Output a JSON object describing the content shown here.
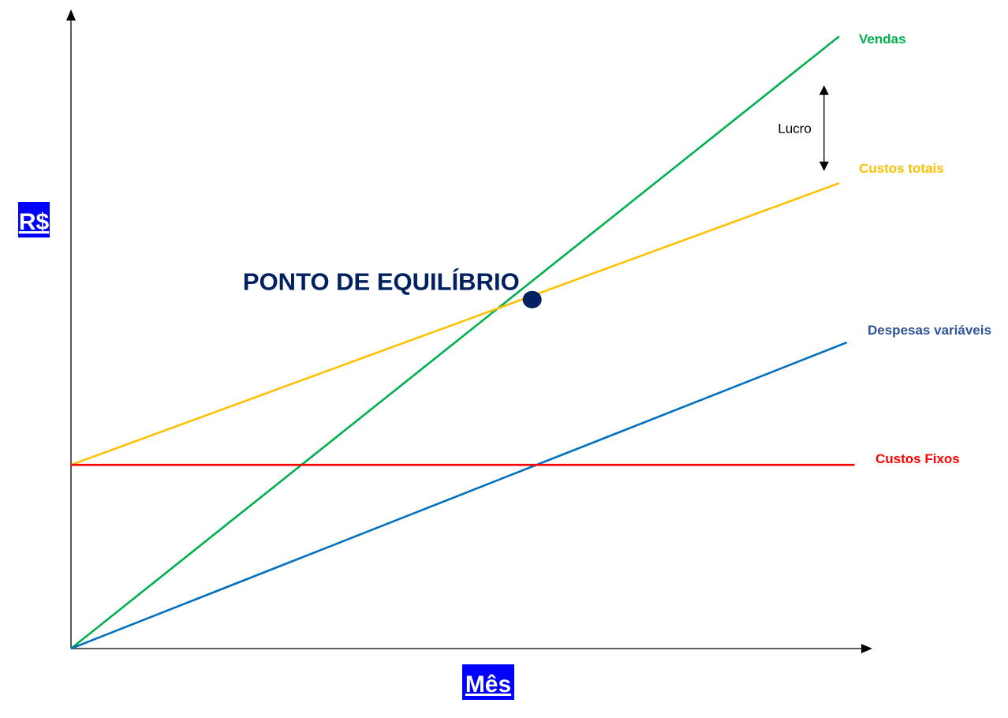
{
  "chart_data": {
    "type": "line",
    "title": "",
    "xlabel": "Mês",
    "ylabel": "R$",
    "xlim": [
      0,
      10
    ],
    "ylim": [
      0,
      10
    ],
    "grid": false,
    "legend": "none",
    "series": [
      {
        "name": "Vendas",
        "color": "#00b050",
        "x": [
          0,
          10
        ],
        "y": [
          0,
          10.0
        ]
      },
      {
        "name": "Custos totais",
        "color": "#ffc000",
        "x": [
          0,
          10
        ],
        "y": [
          3.0,
          7.6
        ]
      },
      {
        "name": "Despesas variáveis",
        "color": "#0070c0",
        "x": [
          0,
          10
        ],
        "y": [
          0,
          5.0
        ]
      },
      {
        "name": "Custos Fixos",
        "color": "#ff0000",
        "x": [
          0,
          10
        ],
        "y": [
          3.0,
          3.0
        ]
      }
    ],
    "annotations": {
      "break_even_label": "PONTO DE EQUILÍBRIO",
      "break_even_point": {
        "x": 5.9,
        "y": 5.7
      },
      "break_even_color": "#002060",
      "profit_label": "Lucro",
      "profit_arrow": {
        "x": 9.7,
        "y_from": 7.8,
        "y_to": 9.2
      }
    },
    "label_colors": {
      "Vendas": "#00b050",
      "Custos totais": "#ffc000",
      "Despesas variáveis": "#2f5597",
      "Custos Fixos": "#ff0000"
    },
    "axis_title_color": "#ffffff",
    "axis_title_bg": "#0000ff"
  }
}
